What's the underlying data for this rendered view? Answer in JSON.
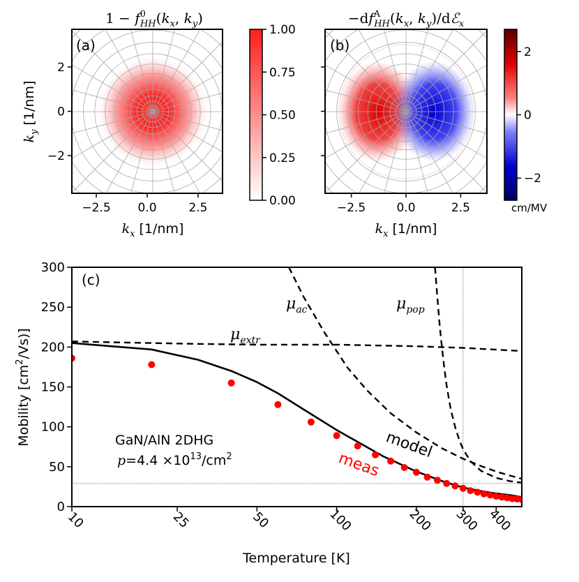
{
  "chart_data": [
    {
      "type": "heatmap",
      "panel": "(a)",
      "title_left": "1 − ",
      "title_math": "f",
      "title_sup": "0",
      "title_sub": "HH",
      "title_tail": "(k_x, k_y)",
      "xlabel": "k_x [1/nm]",
      "ylabel": "k_y [1/nm]",
      "xlim": [
        -3.7,
        3.7
      ],
      "ylim": [
        -3.7,
        3.7
      ],
      "xticks": [
        -2.5,
        0.0,
        2.5
      ],
      "xtick_labels": [
        "−2.5",
        "0.0",
        "2.5"
      ],
      "yticks": [
        -2,
        0,
        2
      ],
      "ytick_labels": [
        "−2",
        "0",
        "2"
      ],
      "colorbar": {
        "range": [
          0.0,
          1.0
        ],
        "ticks": [
          0.0,
          0.25,
          0.5,
          0.75,
          1.0
        ],
        "tick_labels": [
          "0.00",
          "0.25",
          "0.50",
          "0.75",
          "1.00"
        ],
        "colors": [
          "#ffffff",
          "#ff2020"
        ]
      },
      "description": "radially symmetric occupation, ~1 at center decaying to 0 near |k| = 2.8 /nm"
    },
    {
      "type": "heatmap",
      "panel": "(b)",
      "title_left": "−d",
      "title_math": "f",
      "title_sup": "A",
      "title_sub": "HH",
      "title_tail": "(k_x, k_y)/dℰ_x",
      "xlabel": "k_x [1/nm]",
      "xlim": [
        -3.7,
        3.7
      ],
      "ylim": [
        -3.7,
        3.7
      ],
      "xticks": [
        -2.5,
        0.0,
        2.5
      ],
      "xtick_labels": [
        "−2.5",
        "0.0",
        "2.5"
      ],
      "yticks": [
        -2,
        0,
        2
      ],
      "colorbar": {
        "range": [
          -2.7,
          2.7
        ],
        "ticks": [
          -2,
          0,
          2
        ],
        "tick_labels": [
          "−2",
          "0",
          "2"
        ],
        "unit_label": "cm/MV",
        "colors": [
          "#00005a",
          "#ffffff",
          "#5a0000"
        ]
      },
      "description": "antisymmetric in k_x: red (positive) lobe for k_x < 0, blue (negative) lobe for k_x > 0"
    },
    {
      "type": "line",
      "panel": "(c)",
      "xlabel": "Temperature [K]",
      "ylabel_pre": "Mobility [cm",
      "ylabel_sup": "2",
      "ylabel_post": "/Vs)]",
      "xscale": "log",
      "xlim": [
        10,
        500
      ],
      "ylim": [
        0,
        300
      ],
      "xticks": [
        10,
        25,
        50,
        100,
        200,
        300,
        400
      ],
      "xtick_labels": [
        "10",
        "25",
        "50",
        "100",
        "200",
        "300",
        "400"
      ],
      "yticks": [
        0,
        50,
        100,
        150,
        200,
        250,
        300
      ],
      "ytick_labels": [
        "0",
        "50",
        "100",
        "150",
        "200",
        "250",
        "300"
      ],
      "reference_lines": {
        "vertical_T": 300,
        "horizontal_mobility": 29
      },
      "annotation_line1": "GaN/AlN 2DHG",
      "annotation_p": "p",
      "annotation_eq": "=4.4 ×10",
      "annotation_exp": "13",
      "annotation_unit": "/cm",
      "annotation_unit_sup": "2",
      "series": [
        {
          "name": "model",
          "label": "model",
          "style": "solid",
          "color": "#000000",
          "x": [
            10,
            20,
            30,
            40,
            50,
            60,
            80,
            100,
            150,
            200,
            250,
            300,
            350,
            400,
            450,
            500
          ],
          "y": [
            205,
            197,
            184,
            170,
            156,
            142,
            116,
            96,
            63,
            44,
            32,
            24,
            19.5,
            16.5,
            14.5,
            12
          ]
        },
        {
          "name": "meas",
          "label": "meas",
          "style": "markers",
          "color": "#ff0000",
          "x": [
            10,
            20,
            40,
            60,
            80,
            100,
            120,
            140,
            160,
            180,
            200,
            220,
            240,
            260,
            280,
            300,
            320,
            340,
            360,
            380,
            400,
            420,
            440,
            460,
            480,
            500
          ],
          "y": [
            186,
            178,
            155,
            128,
            106,
            89,
            76,
            65,
            57,
            49,
            43,
            37,
            33,
            29,
            26,
            23,
            20,
            18,
            16,
            14.5,
            13,
            12,
            11,
            10,
            9.5,
            9
          ]
        },
        {
          "name": "mu_extr",
          "label_base": "μ",
          "label_sub": "extr",
          "style": "dashed",
          "color": "#000000",
          "x": [
            10,
            20,
            30,
            50,
            100,
            200,
            300,
            500
          ],
          "y": [
            207,
            205,
            204,
            203,
            203,
            201,
            199,
            195
          ]
        },
        {
          "name": "mu_ac",
          "label_base": "μ",
          "label_sub": "ac",
          "style": "dashed",
          "color": "#000000",
          "x": [
            66,
            75,
            90,
            110,
            130,
            160,
            200,
            250,
            300,
            350,
            400,
            450,
            500
          ],
          "y": [
            300,
            263,
            218,
            174,
            146,
            117,
            93,
            73,
            60,
            51,
            44,
            39,
            35
          ]
        },
        {
          "name": "mu_pop",
          "label_base": "μ",
          "label_sub": "pop",
          "style": "dashed",
          "color": "#000000",
          "x": [
            235,
            240,
            245,
            250,
            255,
            260,
            265,
            270,
            280,
            290,
            300,
            320,
            350,
            400,
            450,
            500
          ],
          "y": [
            300,
            262,
            226,
            198,
            173,
            152,
            136,
            121,
            100,
            84,
            72,
            57,
            45,
            36,
            32,
            30
          ]
        }
      ]
    }
  ]
}
